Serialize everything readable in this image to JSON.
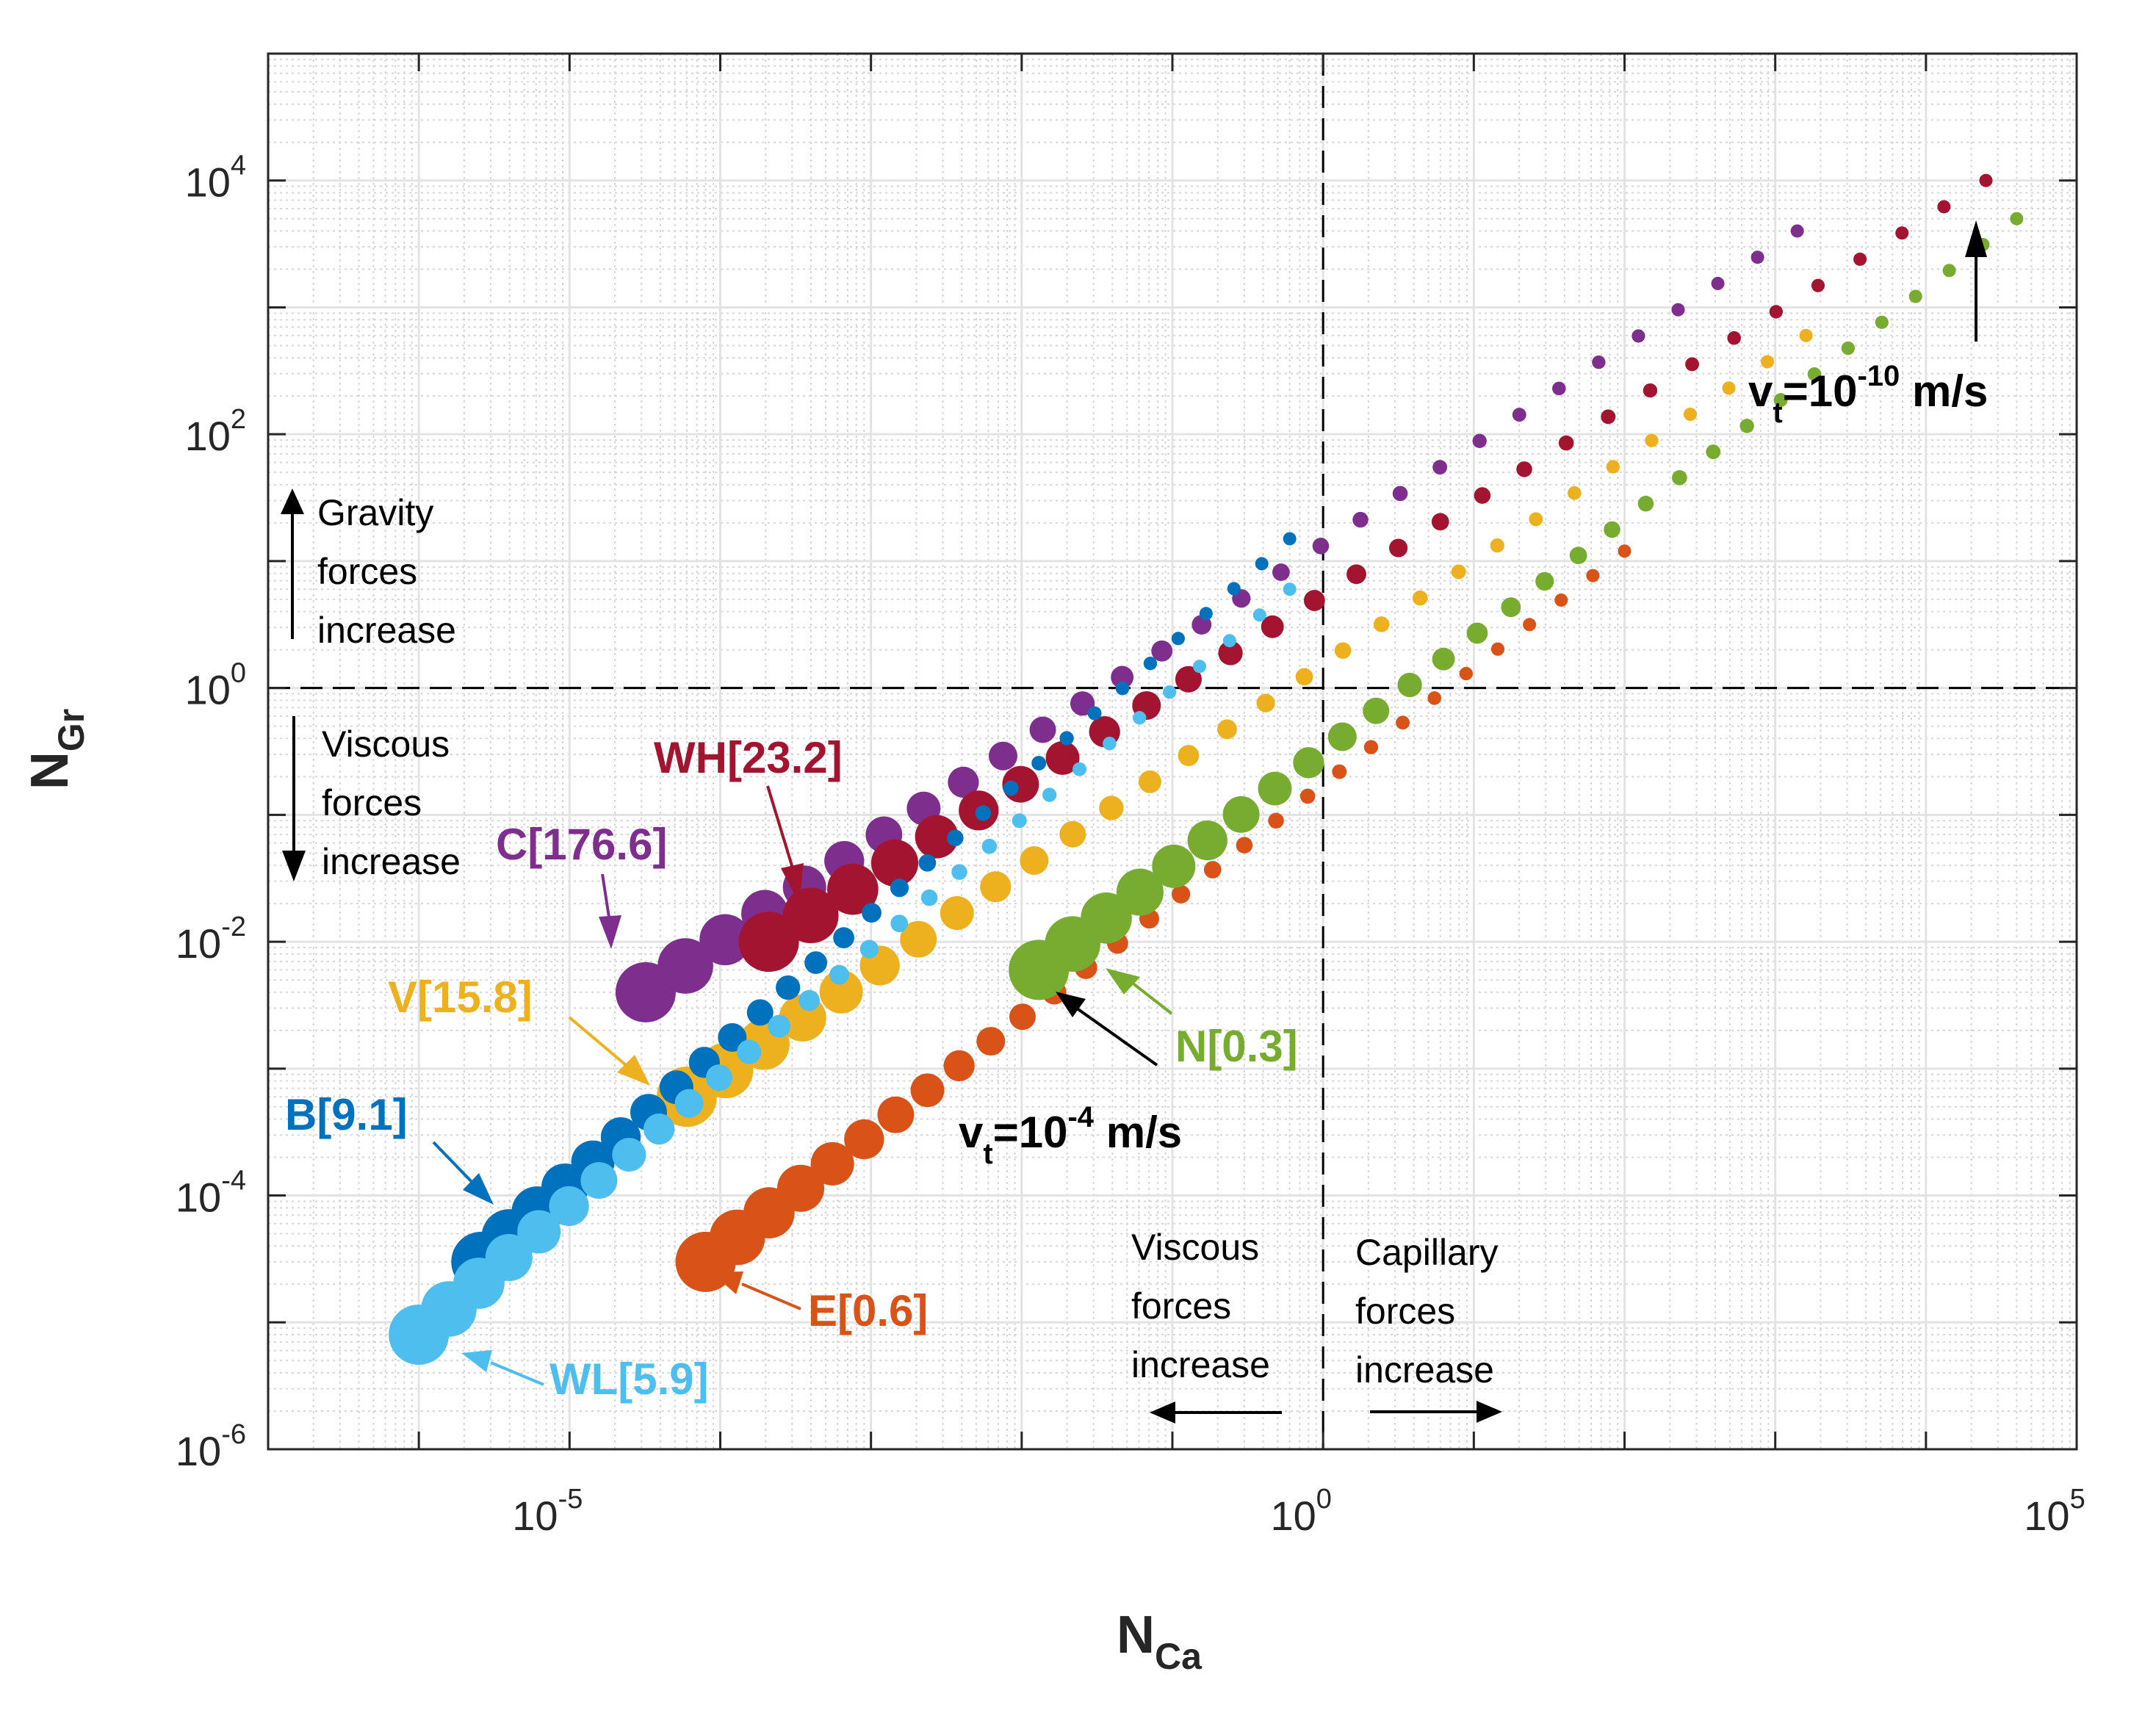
{
  "chart_data": {
    "type": "scatter",
    "xscale": "log",
    "yscale": "log",
    "xlim": [
      1e-07,
      100000
    ],
    "ylim": [
      1e-06,
      100000
    ],
    "xticks": [
      {
        "base": "10",
        "exp": "-5",
        "value": 1e-05
      },
      {
        "base": "10",
        "exp": "0",
        "value": 1
      },
      {
        "base": "10",
        "exp": "5",
        "value": 100000
      }
    ],
    "yticks": [
      {
        "base": "10",
        "exp": "-6",
        "value": 1e-06
      },
      {
        "base": "10",
        "exp": "-4",
        "value": 0.0001
      },
      {
        "base": "10",
        "exp": "-2",
        "value": 0.01
      },
      {
        "base": "10",
        "exp": "0",
        "value": 1
      },
      {
        "base": "10",
        "exp": "2",
        "value": 100
      },
      {
        "base": "10",
        "exp": "4",
        "value": 10000
      }
    ],
    "xlabel": {
      "main": "N",
      "sub": "Ca"
    },
    "ylabel": {
      "main": "N",
      "sub": "Gr"
    },
    "grid": true,
    "reference_lines": [
      {
        "orientation": "horizontal",
        "value": 1,
        "style": "dashed"
      },
      {
        "orientation": "vertical",
        "value": 1,
        "style": "dashed"
      }
    ],
    "series": [
      {
        "name": "C[176.6]",
        "color": "#7E2F8E",
        "x_start": 3.2e-05,
        "y_start": 0.004,
        "x_end": 1400,
        "y_end": 4000
      },
      {
        "name": "WH[23.2]",
        "color": "#A2142F",
        "x_start": 0.00021,
        "y_start": 0.01,
        "x_end": 25000,
        "y_end": 10000
      },
      {
        "name": "V[15.8]",
        "color": "#EDB120",
        "x_start": 6e-05,
        "y_start": 0.0006,
        "x_end": 1600,
        "y_end": 600
      },
      {
        "name": "B[9.1]",
        "color": "#0072BD",
        "x_start": 2.6e-06,
        "y_start": 3e-05,
        "x_end": 0.6,
        "y_end": 15
      },
      {
        "name": "WL[5.9]",
        "color": "#4DBEEE",
        "x_start": 1e-06,
        "y_start": 8e-06,
        "x_end": 0.6,
        "y_end": 6
      },
      {
        "name": "E[0.6]",
        "color": "#D95319",
        "x_start": 8e-05,
        "y_start": 3e-05,
        "x_end": 100,
        "y_end": 12
      },
      {
        "name": "N[0.3]",
        "color": "#77AC30",
        "x_start": 0.013,
        "y_start": 0.006,
        "x_end": 40000,
        "y_end": 5000
      }
    ],
    "points_per_series": 30,
    "velocity_range_note": "marker size decreases as settling velocity decreases"
  },
  "annotations": {
    "gravity": [
      "Gravity",
      "forces",
      "increase"
    ],
    "viscous_left": [
      "Viscous",
      "forces",
      "increase"
    ],
    "viscous_bottom": [
      "Viscous",
      "forces",
      "increase"
    ],
    "capillary": [
      "Capillary",
      "forces",
      "increase"
    ],
    "vt_high": {
      "prefix": "v",
      "sub": "t",
      "mid": "=10",
      "sup": "-4",
      "unit": " m/s"
    },
    "vt_low": {
      "prefix": "v",
      "sub": "t",
      "mid": "=10",
      "sup": "-10",
      "unit": " m/s"
    }
  }
}
